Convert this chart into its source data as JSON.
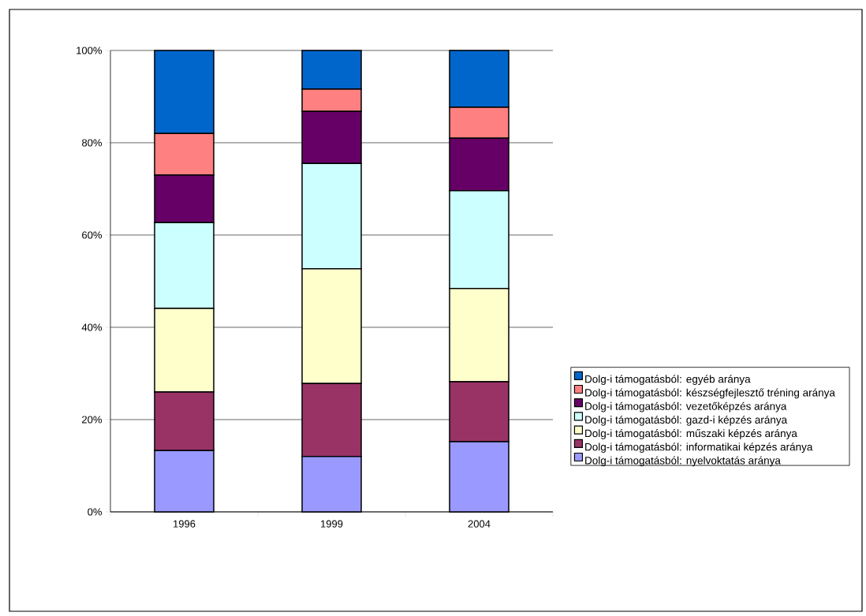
{
  "chart_data": {
    "type": "bar",
    "stacked": true,
    "categories": [
      "1996",
      "1999",
      "2004"
    ],
    "series": [
      {
        "name": "Dolg-i támogatásból: nyelvoktatás aránya",
        "color": "#9999ff",
        "values": [
          13.3,
          12,
          15.2
        ]
      },
      {
        "name": "Dolg-i támogatásból: informatikai képzés aránya",
        "color": "#993366",
        "values": [
          12.7,
          15.8,
          13
        ]
      },
      {
        "name": "Dolg-i támogatásból: műszaki képzés aránya",
        "color": "#ffffcc",
        "values": [
          18.1,
          24.9,
          20.2
        ]
      },
      {
        "name": "Dolg-i támogatásból: gazd-i képzés aránya",
        "color": "#ccffff",
        "values": [
          18.6,
          22.8,
          21.2
        ]
      },
      {
        "name": "Dolg-i támogatásból: vezetőképzés aránya",
        "color": "#660066",
        "values": [
          10.3,
          11.3,
          11.4
        ]
      },
      {
        "name": "Dolg-i támogatásból: készségfejlesztő tréning aránya",
        "color": "#ff8080",
        "values": [
          9,
          4.8,
          6.7
        ]
      },
      {
        "name": "Dolg-i támogatásból: egyéb aránya",
        "color": "#0066cc",
        "values": [
          18,
          8.4,
          12.3
        ]
      }
    ],
    "ylim": [
      0,
      100
    ],
    "yticks": [
      {
        "value": 0,
        "label": "0%"
      },
      {
        "value": 20,
        "label": "20%"
      },
      {
        "value": 40,
        "label": "40%"
      },
      {
        "value": 60,
        "label": "60%"
      },
      {
        "value": 80,
        "label": "80%"
      },
      {
        "value": 100,
        "label": "100%"
      }
    ],
    "grid": "y",
    "legend": "right"
  }
}
